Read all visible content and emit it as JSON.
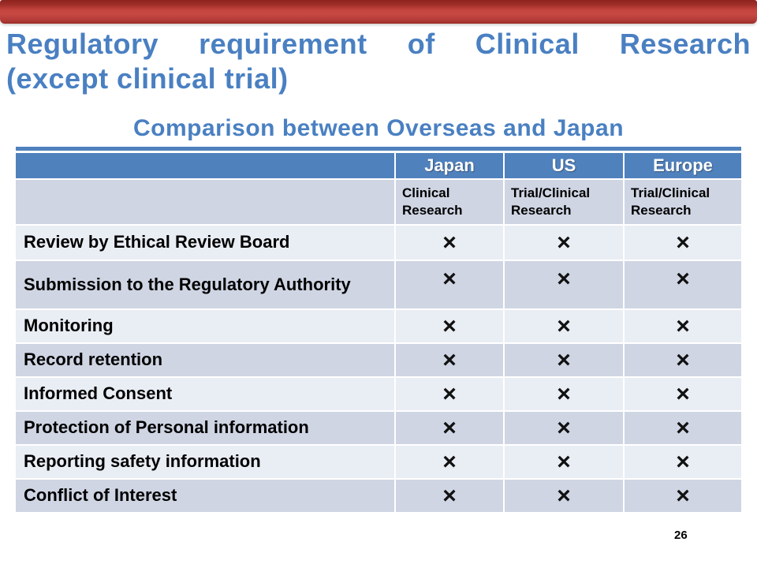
{
  "slide": {
    "title_line1": "Regulatory requirement of Clinical Research",
    "title_line2": "(except clinical trial)",
    "subtitle": "Comparison between Overseas and Japan",
    "page_number": "26"
  },
  "table": {
    "columns": [
      "",
      "Japan",
      "US",
      "Europe"
    ],
    "subheaders": [
      "",
      "Clinical Research",
      "Trial/Clinical Research",
      "Trial/Clinical Research"
    ],
    "rows": [
      {
        "label": "Review by Ethical Review Board",
        "marks": [
          "×",
          "×",
          "×"
        ]
      },
      {
        "label": "Submission to the Regulatory Authority",
        "marks": [
          "×",
          "×",
          "×"
        ]
      },
      {
        "label": "Monitoring",
        "marks": [
          "×",
          "×",
          "×"
        ]
      },
      {
        "label": "Record retention",
        "marks": [
          "×",
          "×",
          "×"
        ]
      },
      {
        "label": "Informed Consent",
        "marks": [
          "×",
          "×",
          "×"
        ]
      },
      {
        "label": "Protection of Personal information",
        "marks": [
          "×",
          "×",
          "×"
        ]
      },
      {
        "label": "Reporting safety information",
        "marks": [
          "×",
          "×",
          "×"
        ]
      },
      {
        "label": "Conflict of Interest",
        "marks": [
          "×",
          "×",
          "×"
        ]
      }
    ]
  },
  "colors": {
    "accent_blue": "#4f81bd",
    "title_blue": "#4a80c2",
    "band_dark": "#cfd5e3",
    "band_light": "#e9edf4",
    "bar_red": "#c4443f"
  }
}
